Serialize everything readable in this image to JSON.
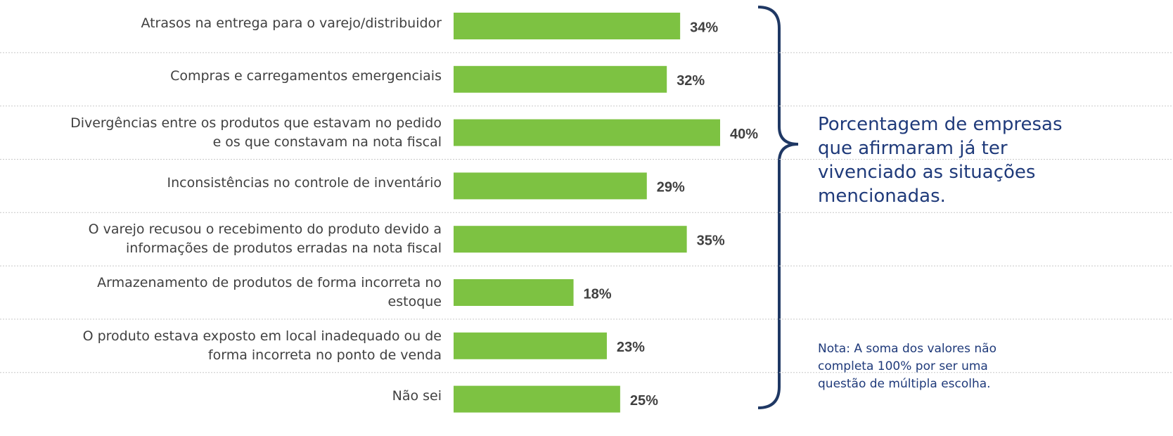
{
  "chart_data": {
    "type": "bar",
    "orientation": "horizontal",
    "categories": [
      "Atrasos na entrega para o varejo/distribuidor",
      "Compras e carregamentos emergenciais",
      "Divergências entre os produtos que estavam no pedido\ne os que constavam na nota fiscal",
      "Inconsistências no controle de inventário",
      "O varejo recusou o recebimento do produto devido a\ninformações de produtos erradas na nota fiscal",
      "Armazenamento de produtos de forma incorreta no\nestoque",
      "O produto estava exposto em local inadequado ou de\nforma incorreta no ponto de venda",
      "Não sei"
    ],
    "values": [
      34,
      32,
      40,
      29,
      35,
      18,
      23,
      25
    ],
    "value_labels": [
      "34%",
      "32%",
      "40%",
      "29%",
      "35%",
      "18%",
      "23%",
      "25%"
    ],
    "color": "#7dc242",
    "annotation": "Porcentagem de empresas\nque afirmaram já ter\nvivenciado as situações\nmencionadas.",
    "note": "Nota: A soma dos valores não\ncompleta 100% por ser uma\nquestão de múltipla escolha."
  }
}
